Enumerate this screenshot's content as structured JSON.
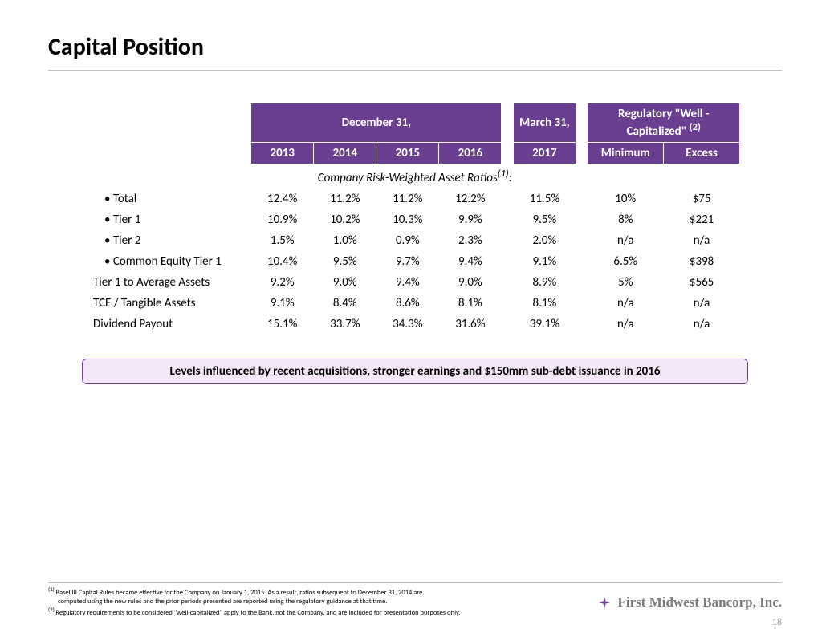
{
  "title": "Capital Position",
  "header": {
    "dec31": "December 31,",
    "mar31": "March 31,",
    "reg": "Regulatory \"Well - Capitalized\" ",
    "reg_note": "(2)",
    "years": [
      "2013",
      "2014",
      "2015",
      "2016",
      "2017"
    ],
    "minimum": "Minimum",
    "excess": "Excess"
  },
  "section_label": "Company Risk-Weighted Asset Ratios",
  "section_note": "(1)",
  "rows": [
    {
      "label": "• Total",
      "indent": true,
      "v": [
        "12.4%",
        "11.2%",
        "11.2%",
        "12.2%",
        "11.5%",
        "10%",
        "$75"
      ]
    },
    {
      "label": "• Tier 1",
      "indent": true,
      "v": [
        "10.9%",
        "10.2%",
        "10.3%",
        "9.9%",
        "9.5%",
        "8%",
        "$221"
      ]
    },
    {
      "label": "• Tier 2",
      "indent": true,
      "v": [
        "1.5%",
        "1.0%",
        "0.9%",
        "2.3%",
        "2.0%",
        "n/a",
        "n/a"
      ]
    },
    {
      "label": "• Common Equity Tier 1",
      "indent": true,
      "v": [
        "10.4%",
        "9.5%",
        "9.7%",
        "9.4%",
        "9.1%",
        "6.5%",
        "$398"
      ]
    },
    {
      "label": "Tier 1 to Average Assets",
      "indent": false,
      "v": [
        "9.2%",
        "9.0%",
        "9.4%",
        "9.0%",
        "8.9%",
        "5%",
        "$565"
      ]
    },
    {
      "label": "TCE / Tangible Assets",
      "indent": false,
      "v": [
        "9.1%",
        "8.4%",
        "8.6%",
        "8.1%",
        "8.1%",
        "n/a",
        "n/a"
      ]
    },
    {
      "label": "Dividend Payout",
      "indent": false,
      "v": [
        "15.1%",
        "33.7%",
        "34.3%",
        "31.6%",
        "39.1%",
        "n/a",
        "n/a"
      ]
    }
  ],
  "callout": "Levels influenced by recent acquisitions, stronger earnings and $150mm sub-debt issuance in 2016",
  "footnotes": {
    "f1a": "Basel III Capital Rules became effective for the Company on January 1, 2015.  As a result, ratios subsequent to December 31, 2014 are",
    "f1b": "computed using the new rules and the prior periods presented are reported using the regulatory guidance at that time.",
    "f2": "Regulatory requirements to be considered \"well-capitalized\" apply to the Bank, not the Company, and are included for presentation purposes only."
  },
  "brand": "First Midwest Bancorp, Inc.",
  "page": "18",
  "colors": {
    "purple": "#6a3f91",
    "callout_bg": "#f2e6f7",
    "rule": "#bfbfbf",
    "brand_gray": "#7a7a7a",
    "pagenum_gray": "#a6a6a6"
  }
}
